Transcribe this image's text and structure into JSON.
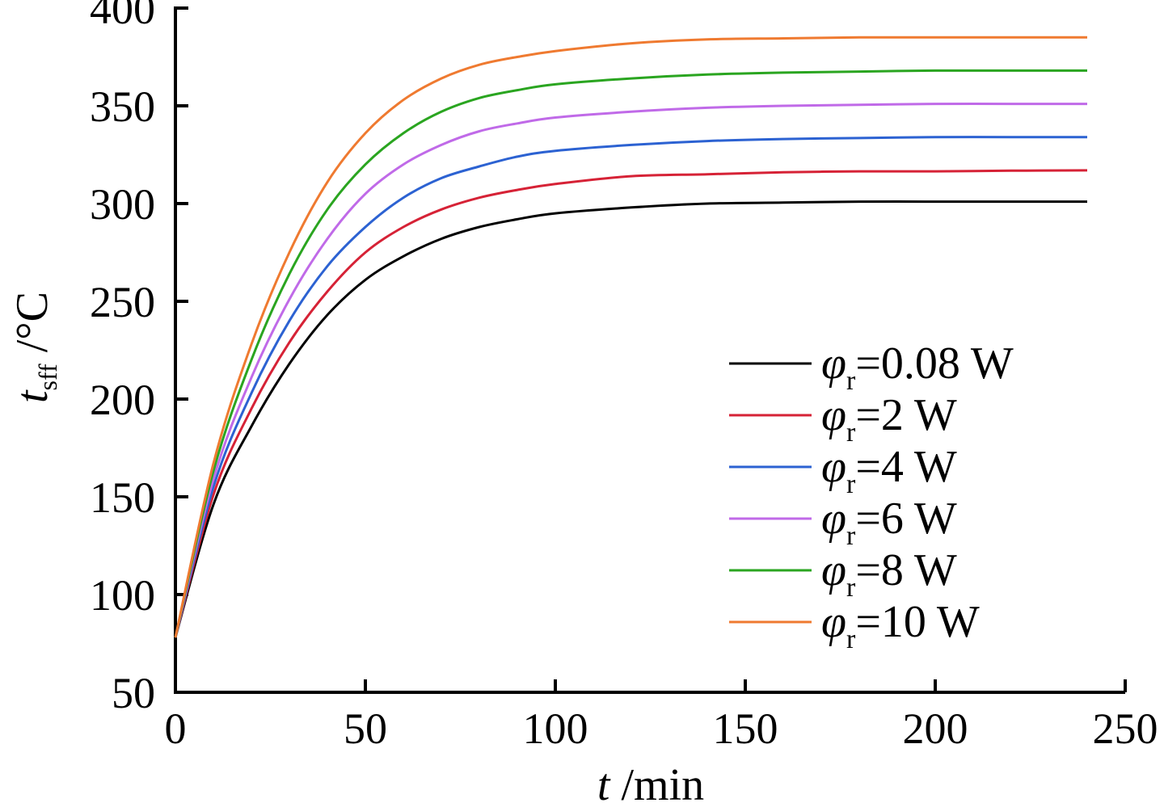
{
  "chart_data": {
    "type": "line",
    "xlabel": {
      "var": "t",
      "unit": " /min"
    },
    "ylabel": {
      "var": "t",
      "sub": "sff",
      "unit": " /°C"
    },
    "xlim": [
      0,
      250
    ],
    "ylim": [
      50,
      400
    ],
    "xticks": [
      0,
      50,
      100,
      150,
      200,
      250
    ],
    "yticks": [
      50,
      100,
      150,
      200,
      250,
      300,
      350,
      400
    ],
    "grid": false,
    "legend_position": "right-middle",
    "legend_symbol": "φ",
    "legend_sub": "r",
    "x": [
      0,
      10,
      20,
      30,
      40,
      50,
      60,
      70,
      80,
      90,
      100,
      120,
      140,
      160,
      180,
      200,
      220,
      240
    ],
    "series": [
      {
        "name": "=0.08 W",
        "color": "#000000",
        "values": [
          78,
          146,
          186,
          218,
          243,
          261,
          273,
          282,
          288,
          292,
          295,
          298,
          300,
          300.5,
          301,
          301,
          301,
          301
        ]
      },
      {
        "name": "=2 W",
        "color": "#d62236",
        "values": [
          78,
          151,
          195,
          229,
          255,
          275,
          288,
          297,
          303,
          307,
          310,
          314,
          315,
          316,
          316.5,
          316.5,
          316.8,
          317
        ]
      },
      {
        "name": "=4 W",
        "color": "#2c62d2",
        "values": [
          78,
          155,
          203,
          240,
          268,
          288,
          303,
          313,
          319,
          324,
          327,
          330,
          332,
          333,
          333.5,
          334,
          334,
          334
        ]
      },
      {
        "name": "=6 W",
        "color": "#c06ae8",
        "values": [
          78,
          159,
          211,
          251,
          282,
          305,
          320,
          330,
          337,
          341,
          344,
          347,
          349,
          350,
          350.5,
          351,
          351,
          351
        ]
      },
      {
        "name": "=8 W",
        "color": "#2aa520",
        "values": [
          78,
          163,
          220,
          264,
          297,
          320,
          336,
          347,
          354,
          358,
          361,
          364,
          366,
          367,
          367.5,
          368,
          368,
          368
        ]
      },
      {
        "name": "=10 W",
        "color": "#ef7a30",
        "values": [
          78,
          167,
          228,
          275,
          311,
          336,
          353,
          364,
          371,
          375,
          378,
          382,
          384,
          384.5,
          385,
          385,
          385,
          385
        ]
      }
    ]
  }
}
